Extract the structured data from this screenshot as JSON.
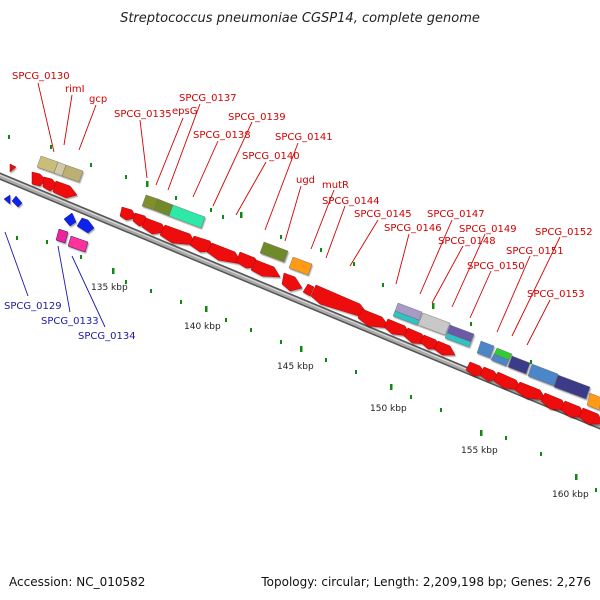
{
  "title": "Streptococcus pneumoniae CGSP14, complete genome",
  "footer": {
    "accession": "Accession: NC_010582",
    "topology": "Topology: circular; Length: 2,209,198 bp; Genes: 2,276"
  },
  "scale_labels": [
    "135 kbp",
    "140 kbp",
    "145 kbp",
    "150 kbp",
    "155 kbp",
    "160 kbp"
  ],
  "colors": {
    "forward_gene": "#ee1111",
    "reverse_gene": "#1122ee",
    "label_red": "#d40000",
    "label_blue": "#1a1aaa",
    "backbone": "#888888",
    "tick": "#118811"
  },
  "red_labels": [
    "SPCG_0130",
    "rimI",
    "gcp",
    "SPCG_0135",
    "epsG",
    "SPCG_0137",
    "SPCG_0138",
    "SPCG_0139",
    "SPCG_0140",
    "SPCG_0141",
    "ugd",
    "mutR",
    "SPCG_0144",
    "SPCG_0145",
    "SPCG_0146",
    "SPCG_0147",
    "SPCG_0148",
    "SPCG_0149",
    "SPCG_0150",
    "SPCG_0151",
    "SPCG_0152",
    "SPCG_0153"
  ],
  "blue_labels": [
    "SPCG_0129",
    "SPCG_0133",
    "SPCG_0134"
  ]
}
